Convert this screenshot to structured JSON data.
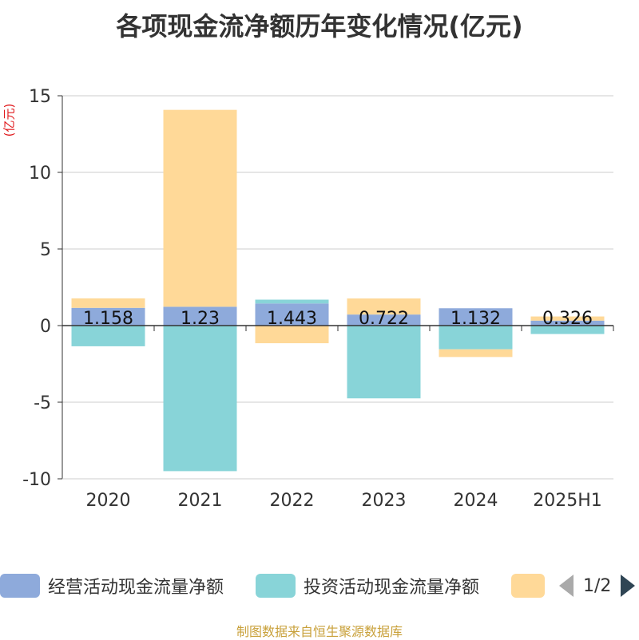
{
  "chart_data": {
    "type": "bar",
    "stacked": true,
    "title": "各项现金流净额历年变化情况(亿元)",
    "ylabel": "(亿元)",
    "categories": [
      "2020",
      "2021",
      "2022",
      "2023",
      "2024",
      "2025H1"
    ],
    "ylim": [
      -10,
      15
    ],
    "yticks": [
      15,
      10,
      5,
      0,
      -5,
      -10
    ],
    "grid": true,
    "series": [
      {
        "name": "经营活动现金流量净额",
        "color": "#8eaadb",
        "values": [
          1.158,
          1.23,
          1.443,
          0.722,
          1.132,
          0.326
        ]
      },
      {
        "name": "投资活动现金流量净额",
        "color": "#88d4d8",
        "values": [
          -1.35,
          -9.5,
          0.25,
          -4.75,
          -1.55,
          -0.55
        ]
      },
      {
        "name": "",
        "color": "#ffd998",
        "values": [
          0.62,
          12.85,
          -1.15,
          1.05,
          -0.5,
          0.27
        ]
      }
    ],
    "data_labels": [
      "1.158",
      "1.23",
      "1.443",
      "0.722",
      "1.132",
      "0.326"
    ]
  },
  "legend": {
    "page": "1/2"
  },
  "source": "制图数据来自恒生聚源数据库"
}
